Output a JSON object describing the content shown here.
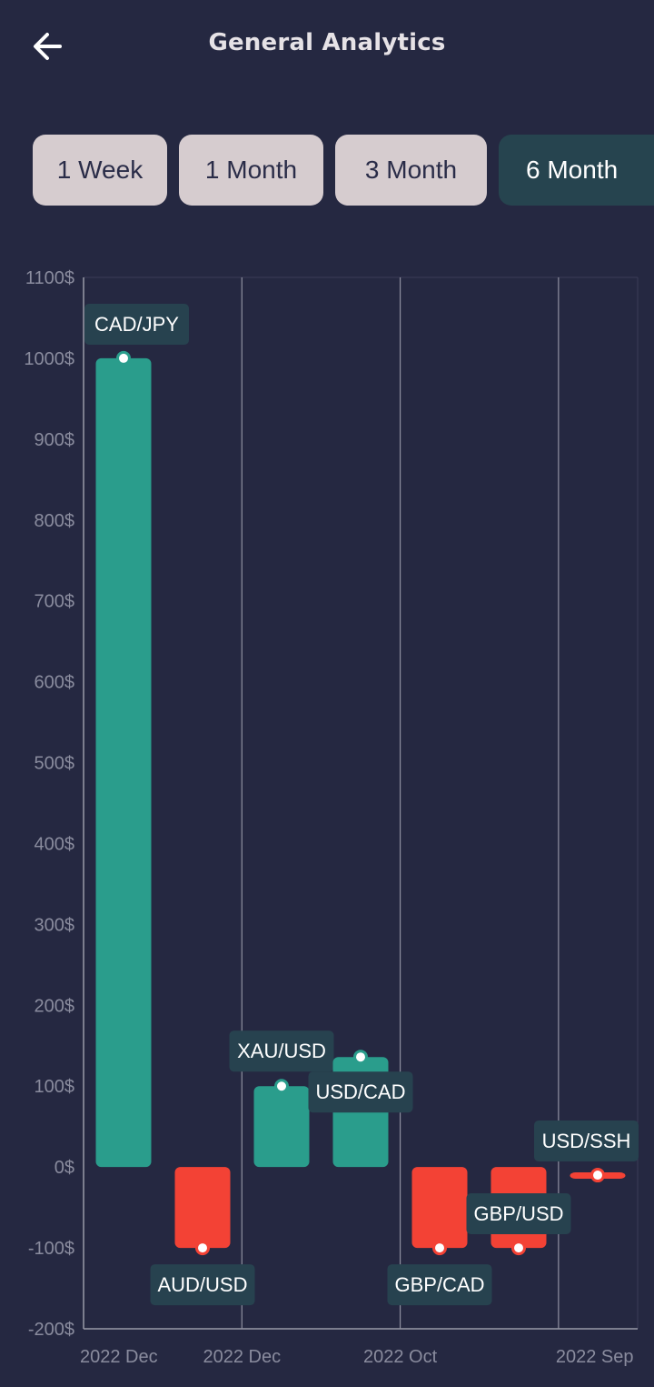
{
  "header": {
    "title": "General Analytics",
    "back_icon": "arrow-left-icon"
  },
  "tabs": [
    {
      "label": "1 Week",
      "active": false
    },
    {
      "label": "1 Month",
      "active": false
    },
    {
      "label": "3 Month",
      "active": false
    },
    {
      "label": "6 Month",
      "active": true
    }
  ],
  "colors": {
    "background": "#252841",
    "positive": "#2a9d8c",
    "negative": "#f34235",
    "label_bg": "#27424f",
    "tab_bg": "#d6cccf",
    "tab_active_bg": "#26444f"
  },
  "chart_data": {
    "type": "bar",
    "y_unit": "$",
    "ylim": [
      -200,
      1100
    ],
    "yticks": [
      "1100$",
      "1000$",
      "900$",
      "800$",
      "700$",
      "600$",
      "500$",
      "400$",
      "300$",
      "200$",
      "100$",
      "0$",
      "-100$",
      "-200$"
    ],
    "xticks": [
      "2022 Dec",
      "2022 Dec",
      "2022 Oct",
      "2022 Sep"
    ],
    "grid": "vertical",
    "bars": [
      {
        "label": "CAD/JPY",
        "value": 1000,
        "group": 0
      },
      {
        "label": "AUD/USD",
        "value": -100,
        "group": 0
      },
      {
        "label": "XAU/USD",
        "value": 100,
        "group": 1
      },
      {
        "label": "USD/CAD",
        "value": 136,
        "group": 1
      },
      {
        "label": "GBP/CAD",
        "value": -100,
        "group": 2
      },
      {
        "label": "GBP/USD",
        "value": -100,
        "group": 2
      },
      {
        "label": "USD/SSH",
        "value": -10,
        "group": 3
      }
    ]
  }
}
